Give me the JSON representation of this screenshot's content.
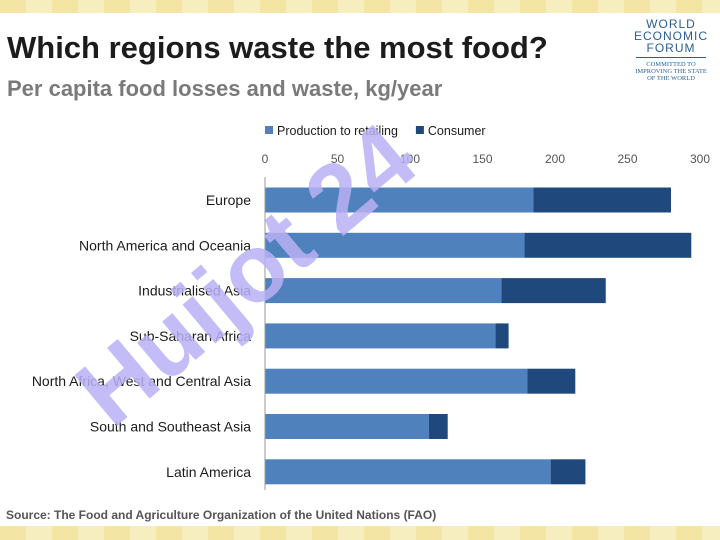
{
  "header": {
    "title": "Which regions waste the most food?",
    "subtitle": "Per capita food losses and waste, kg/year"
  },
  "logo": {
    "lines": [
      "WORLD",
      "ECONOMIC",
      "FORUM"
    ],
    "tagline": [
      "COMMITTED TO",
      "IMPROVING THE STATE",
      "OF THE WORLD"
    ]
  },
  "watermark": {
    "text": "Huijot 24",
    "color": "#b8b0f4"
  },
  "source": "Source: The Food and Agriculture Organization of the United Nations (FAO)",
  "chart_data": {
    "type": "bar",
    "orientation": "horizontal",
    "stacked": true,
    "title": "Which regions waste the most food?",
    "subtitle": "Per capita food losses and waste, kg/year",
    "categories": [
      "Europe",
      "North America and Oceania",
      "Industrialised Asia",
      "Sub-Saharan Africa",
      "North Africa, West and Central Asia",
      "South and Southeast Asia",
      "Latin America"
    ],
    "series": [
      {
        "name": "Production to retailing",
        "color": "#4f81bd",
        "values": [
          185,
          179,
          163,
          159,
          181,
          113,
          197
        ]
      },
      {
        "name": "Consumer",
        "color": "#1f497d",
        "values": [
          95,
          115,
          72,
          9,
          33,
          13,
          24
        ]
      }
    ],
    "xlim": [
      0,
      300
    ],
    "xticks": [
      0,
      50,
      100,
      150,
      200,
      250,
      300
    ],
    "xaxis_position": "top",
    "legend_position": "top",
    "grid": false
  }
}
